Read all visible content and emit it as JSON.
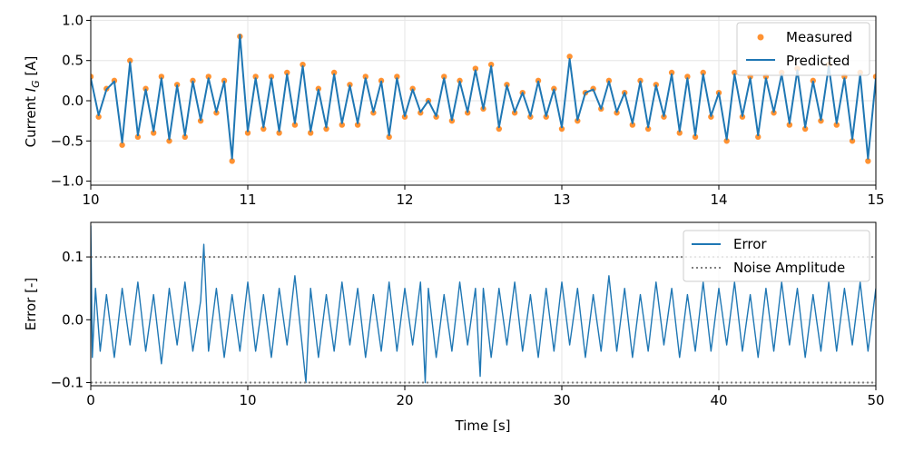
{
  "colors": {
    "measured": "#ff7f0e",
    "predicted": "#1f77b4",
    "error": "#1f77b4",
    "noise": "#808080",
    "grid": "#e6e6e6"
  },
  "chart_data": [
    {
      "type": "line",
      "panel": "top",
      "xlabel": "",
      "ylabel_prefix": "Current ",
      "ylabel_var": "I",
      "ylabel_sub": "G",
      "ylabel_unit": " [A]",
      "xlim": [
        10,
        15
      ],
      "ylim": [
        -1.05,
        1.05
      ],
      "xticks": [
        10,
        11,
        12,
        13,
        14,
        15
      ],
      "xtick_labels": [
        "10",
        "11",
        "12",
        "13",
        "14",
        "15"
      ],
      "yticks": [
        -1.0,
        -0.5,
        0.0,
        0.5,
        1.0
      ],
      "ytick_labels": [
        "−1.0",
        "−0.5",
        "0.0",
        "0.5",
        "1.0"
      ],
      "grid": true,
      "legend_position": "top-right",
      "legend": [
        "Measured",
        "Predicted"
      ],
      "series": [
        {
          "name": "Measured",
          "style": "scatter",
          "x": [
            10.0,
            10.05,
            10.1,
            10.15,
            10.2,
            10.25,
            10.3,
            10.35,
            10.4,
            10.45,
            10.5,
            10.55,
            10.6,
            10.65,
            10.7,
            10.75,
            10.8,
            10.85,
            10.9,
            10.95,
            11.0,
            11.05,
            11.1,
            11.15,
            11.2,
            11.25,
            11.3,
            11.35,
            11.4,
            11.45,
            11.5,
            11.55,
            11.6,
            11.65,
            11.7,
            11.75,
            11.8,
            11.85,
            11.9,
            11.95,
            12.0,
            12.05,
            12.1,
            12.15,
            12.2,
            12.25,
            12.3,
            12.35,
            12.4,
            12.45,
            12.5,
            12.55,
            12.6,
            12.65,
            12.7,
            12.75,
            12.8,
            12.85,
            12.9,
            12.95,
            13.0,
            13.05,
            13.1,
            13.15,
            13.2,
            13.25,
            13.3,
            13.35,
            13.4,
            13.45,
            13.5,
            13.55,
            13.6,
            13.65,
            13.7,
            13.75,
            13.8,
            13.85,
            13.9,
            13.95,
            14.0,
            14.05,
            14.1,
            14.15,
            14.2,
            14.25,
            14.3,
            14.35,
            14.4,
            14.45,
            14.5,
            14.55,
            14.6,
            14.65,
            14.7,
            14.75,
            14.8,
            14.85,
            14.9,
            14.95,
            15.0
          ],
          "y": [
            0.3,
            -0.2,
            0.15,
            0.25,
            -0.55,
            0.5,
            -0.45,
            0.15,
            -0.4,
            0.3,
            -0.5,
            0.2,
            -0.45,
            0.25,
            -0.25,
            0.3,
            -0.15,
            0.25,
            -0.75,
            0.8,
            -0.4,
            0.3,
            -0.35,
            0.3,
            -0.4,
            0.35,
            -0.3,
            0.45,
            -0.4,
            0.15,
            -0.35,
            0.35,
            -0.3,
            0.2,
            -0.3,
            0.3,
            -0.15,
            0.25,
            -0.45,
            0.3,
            -0.2,
            0.15,
            -0.15,
            0.0,
            -0.2,
            0.3,
            -0.25,
            0.25,
            -0.15,
            0.4,
            -0.1,
            0.45,
            -0.35,
            0.2,
            -0.15,
            0.1,
            -0.2,
            0.25,
            -0.2,
            0.15,
            -0.35,
            0.55,
            -0.25,
            0.1,
            0.15,
            -0.1,
            0.25,
            -0.15,
            0.1,
            -0.3,
            0.25,
            -0.35,
            0.2,
            -0.2,
            0.35,
            -0.4,
            0.3,
            -0.45,
            0.35,
            -0.2,
            0.1,
            -0.5,
            0.35,
            -0.2,
            0.3,
            -0.45,
            0.3,
            -0.15,
            0.35,
            -0.3,
            0.4,
            -0.35,
            0.25,
            -0.25,
            0.45,
            -0.3,
            0.3,
            -0.5,
            0.35,
            -0.75,
            0.3
          ]
        },
        {
          "name": "Predicted",
          "style": "line",
          "x": [
            10.0,
            10.05,
            10.1,
            10.15,
            10.2,
            10.25,
            10.3,
            10.35,
            10.4,
            10.45,
            10.5,
            10.55,
            10.6,
            10.65,
            10.7,
            10.75,
            10.8,
            10.85,
            10.9,
            10.95,
            11.0,
            11.05,
            11.1,
            11.15,
            11.2,
            11.25,
            11.3,
            11.35,
            11.4,
            11.45,
            11.5,
            11.55,
            11.6,
            11.65,
            11.7,
            11.75,
            11.8,
            11.85,
            11.9,
            11.95,
            12.0,
            12.05,
            12.1,
            12.15,
            12.2,
            12.25,
            12.3,
            12.35,
            12.4,
            12.45,
            12.5,
            12.55,
            12.6,
            12.65,
            12.7,
            12.75,
            12.8,
            12.85,
            12.9,
            12.95,
            13.0,
            13.05,
            13.1,
            13.15,
            13.2,
            13.25,
            13.3,
            13.35,
            13.4,
            13.45,
            13.5,
            13.55,
            13.6,
            13.65,
            13.7,
            13.75,
            13.8,
            13.85,
            13.9,
            13.95,
            14.0,
            14.05,
            14.1,
            14.15,
            14.2,
            14.25,
            14.3,
            14.35,
            14.4,
            14.45,
            14.5,
            14.55,
            14.6,
            14.65,
            14.7,
            14.75,
            14.8,
            14.85,
            14.9,
            14.95,
            15.0
          ],
          "y": [
            0.28,
            -0.18,
            0.14,
            0.24,
            -0.52,
            0.48,
            -0.43,
            0.14,
            -0.38,
            0.28,
            -0.48,
            0.19,
            -0.43,
            0.24,
            -0.24,
            0.28,
            -0.14,
            0.24,
            -0.72,
            0.82,
            -0.38,
            0.28,
            -0.33,
            0.28,
            -0.38,
            0.33,
            -0.28,
            0.43,
            -0.38,
            0.14,
            -0.33,
            0.33,
            -0.28,
            0.19,
            -0.28,
            0.28,
            -0.14,
            0.24,
            -0.43,
            0.28,
            -0.19,
            0.14,
            -0.14,
            0.0,
            -0.19,
            0.28,
            -0.24,
            0.24,
            -0.14,
            0.38,
            -0.1,
            0.43,
            -0.33,
            0.19,
            -0.14,
            0.1,
            -0.19,
            0.24,
            -0.19,
            0.14,
            -0.33,
            0.52,
            -0.24,
            0.1,
            0.14,
            -0.1,
            0.24,
            -0.14,
            0.1,
            -0.28,
            0.24,
            -0.33,
            0.19,
            -0.19,
            0.33,
            -0.38,
            0.28,
            -0.43,
            0.33,
            -0.19,
            0.1,
            -0.48,
            0.33,
            -0.19,
            0.28,
            -0.43,
            0.28,
            -0.14,
            0.33,
            -0.28,
            0.38,
            -0.33,
            0.24,
            -0.24,
            0.43,
            -0.28,
            0.28,
            -0.48,
            0.33,
            -0.72,
            0.28
          ]
        }
      ]
    },
    {
      "type": "line",
      "panel": "bottom",
      "xlabel": "Time [s]",
      "ylabel": "Error [-]",
      "xlim": [
        0,
        50
      ],
      "ylim": [
        -0.105,
        0.155
      ],
      "xticks": [
        0,
        10,
        20,
        30,
        40,
        50
      ],
      "xtick_labels": [
        "0",
        "10",
        "20",
        "30",
        "40",
        "50"
      ],
      "yticks": [
        -0.1,
        0.0,
        0.1
      ],
      "ytick_labels": [
        "−0.1",
        "0.0",
        "0.1"
      ],
      "grid": true,
      "legend_position": "top-right",
      "legend": [
        "Error",
        "Noise Amplitude"
      ],
      "series": [
        {
          "name": "Error",
          "style": "line",
          "x": [
            0.0,
            0.1,
            0.3,
            0.6,
            1.0,
            1.5,
            2.0,
            2.5,
            3.0,
            3.5,
            4.0,
            4.5,
            5.0,
            5.5,
            6.0,
            6.5,
            7.0,
            7.2,
            7.5,
            8.0,
            8.5,
            9.0,
            9.5,
            10.0,
            10.5,
            11.0,
            11.5,
            12.0,
            12.5,
            13.0,
            13.5,
            13.7,
            14.0,
            14.5,
            15.0,
            15.5,
            16.0,
            16.5,
            17.0,
            17.5,
            18.0,
            18.5,
            19.0,
            19.5,
            20.0,
            20.5,
            21.0,
            21.3,
            21.5,
            22.0,
            22.5,
            23.0,
            23.5,
            24.0,
            24.5,
            24.8,
            25.0,
            25.5,
            26.0,
            26.5,
            27.0,
            27.5,
            28.0,
            28.5,
            29.0,
            29.5,
            30.0,
            30.5,
            31.0,
            31.5,
            32.0,
            32.5,
            33.0,
            33.5,
            34.0,
            34.5,
            35.0,
            35.5,
            36.0,
            36.5,
            37.0,
            37.5,
            38.0,
            38.5,
            39.0,
            39.5,
            40.0,
            40.5,
            41.0,
            41.5,
            42.0,
            42.5,
            43.0,
            43.5,
            44.0,
            44.5,
            45.0,
            45.5,
            46.0,
            46.5,
            47.0,
            47.5,
            48.0,
            48.5,
            49.0,
            49.5,
            50.0
          ],
          "y": [
            0.15,
            -0.06,
            0.05,
            -0.05,
            0.04,
            -0.06,
            0.05,
            -0.04,
            0.06,
            -0.05,
            0.04,
            -0.07,
            0.05,
            -0.04,
            0.06,
            -0.05,
            0.03,
            0.12,
            -0.05,
            0.05,
            -0.06,
            0.04,
            -0.05,
            0.06,
            -0.05,
            0.04,
            -0.06,
            0.05,
            -0.04,
            0.07,
            -0.05,
            -0.1,
            0.05,
            -0.06,
            0.04,
            -0.05,
            0.06,
            -0.04,
            0.05,
            -0.06,
            0.04,
            -0.05,
            0.06,
            -0.05,
            0.05,
            -0.04,
            0.06,
            -0.1,
            0.05,
            -0.06,
            0.04,
            -0.05,
            0.06,
            -0.04,
            0.05,
            -0.09,
            0.05,
            -0.06,
            0.05,
            -0.04,
            0.06,
            -0.05,
            0.04,
            -0.06,
            0.05,
            -0.05,
            0.06,
            -0.04,
            0.05,
            -0.06,
            0.04,
            -0.05,
            0.07,
            -0.05,
            0.05,
            -0.06,
            0.04,
            -0.05,
            0.06,
            -0.04,
            0.05,
            -0.06,
            0.04,
            -0.05,
            0.06,
            -0.05,
            0.05,
            -0.04,
            0.06,
            -0.05,
            0.04,
            -0.06,
            0.05,
            -0.05,
            0.06,
            -0.04,
            0.05,
            -0.06,
            0.04,
            -0.05,
            0.06,
            -0.05,
            0.05,
            -0.04,
            0.06,
            -0.05,
            0.05
          ]
        },
        {
          "name": "Noise Amplitude",
          "style": "dotted",
          "levels": [
            0.1,
            -0.1
          ]
        }
      ]
    }
  ]
}
